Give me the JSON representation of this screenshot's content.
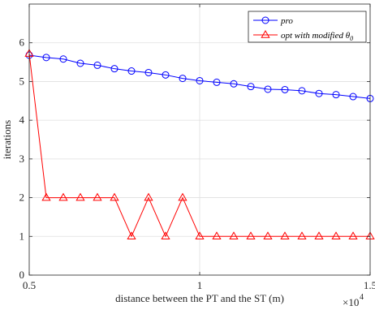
{
  "chart_data": {
    "type": "line",
    "xlabel": "distance between the PT and the ST (m)",
    "ylabel": "iterations",
    "xlim": [
      5000,
      15000
    ],
    "ylim": [
      0,
      7
    ],
    "x_ticks": [
      5000,
      10000,
      15000
    ],
    "x_tick_labels": [
      "0.5",
      "1",
      "1.5"
    ],
    "x_exponent_base": "×10",
    "x_exponent_power": "4",
    "y_ticks": [
      0,
      1,
      2,
      3,
      4,
      5,
      6
    ],
    "y_tick_labels": [
      "0",
      "1",
      "2",
      "3",
      "4",
      "5",
      "6"
    ],
    "grid": true,
    "legend_position": "top-right",
    "x": [
      5000,
      5500,
      6000,
      6500,
      7000,
      7500,
      8000,
      8500,
      9000,
      9500,
      10000,
      10500,
      11000,
      11500,
      12000,
      12500,
      13000,
      13500,
      14000,
      14500,
      15000
    ],
    "series": [
      {
        "name": "pro",
        "color": "#0000ff",
        "marker": "circle",
        "values": [
          5.68,
          5.62,
          5.58,
          5.47,
          5.42,
          5.33,
          5.27,
          5.23,
          5.17,
          5.08,
          5.02,
          4.98,
          4.94,
          4.87,
          4.8,
          4.79,
          4.76,
          4.69,
          4.66,
          4.61,
          4.56
        ]
      },
      {
        "name": "opt with modified θ",
        "name_subscript": "0",
        "color": "#ff0000",
        "marker": "triangle",
        "values": [
          5.72,
          2,
          2,
          2,
          2,
          2,
          1,
          2,
          1,
          2,
          1,
          1,
          1,
          1,
          1,
          1,
          1,
          1,
          1,
          1,
          1
        ]
      }
    ]
  }
}
